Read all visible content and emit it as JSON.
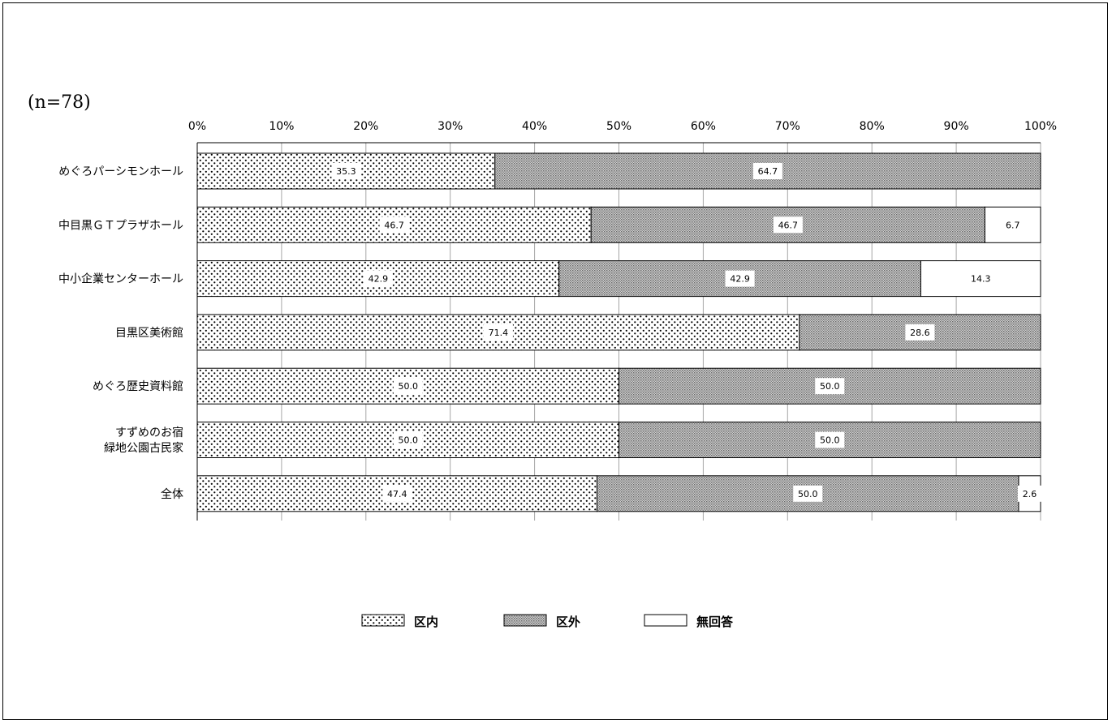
{
  "sample_label": "(n=78)",
  "chart_data": {
    "type": "bar",
    "orientation": "horizontal",
    "stacked": true,
    "percent_stacked": true,
    "categories": [
      [
        "めぐろパーシモンホール"
      ],
      [
        "中目黒ＧＴプラザホール"
      ],
      [
        "中小企業センターホール"
      ],
      [
        "目黒区美術館"
      ],
      [
        "めぐろ歴史資料館"
      ],
      [
        "すずめのお宿",
        "緑地公園古民家"
      ],
      [
        "全体"
      ]
    ],
    "series": [
      {
        "name": "区内",
        "values": [
          35.3,
          46.7,
          42.9,
          71.4,
          50.0,
          50.0,
          47.4
        ],
        "pattern": "dots"
      },
      {
        "name": "区外",
        "values": [
          64.7,
          46.7,
          42.9,
          28.6,
          50.0,
          50.0,
          50.0
        ],
        "pattern": "fine-hatch"
      },
      {
        "name": "無回答",
        "values": [
          null,
          6.7,
          14.3,
          null,
          null,
          null,
          2.6
        ],
        "pattern": "none"
      }
    ],
    "xlim": [
      0,
      100
    ],
    "xticks": [
      "0%",
      "10%",
      "20%",
      "30%",
      "40%",
      "50%",
      "60%",
      "70%",
      "80%",
      "90%",
      "100%"
    ],
    "xaxis_position": "top",
    "grid": true,
    "legend_position": "bottom",
    "colors": {
      "bar_border": "#000000",
      "grid": "#a6a6a6",
      "dot_fill": "#000000",
      "hatch_dark": "#6e6e6e",
      "hatch_light": "#d9d9d9",
      "label_bg": "#ffffff"
    }
  }
}
